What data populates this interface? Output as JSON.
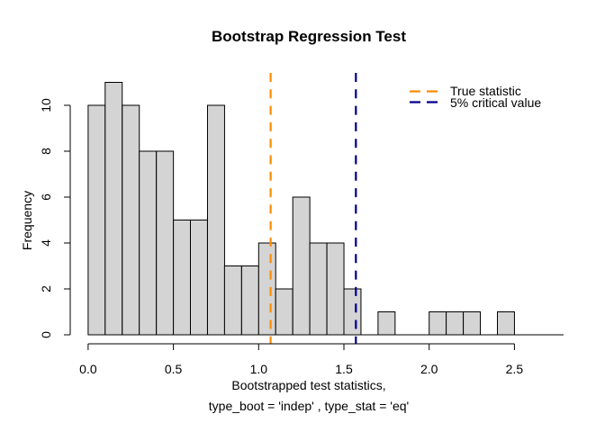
{
  "chart_data": {
    "type": "bar",
    "subtype": "histogram",
    "title": "Bootstrap Regression Test",
    "xlabel_line1": "Bootstrapped test statistics,",
    "xlabel_line2": "type_boot = 'indep' , type_stat = 'eq'",
    "ylabel": "Frequency",
    "bin_start": 0.0,
    "bin_width": 0.1,
    "counts": [
      10,
      11,
      10,
      8,
      8,
      5,
      5,
      10,
      3,
      3,
      4,
      2,
      6,
      4,
      4,
      2,
      0,
      1,
      0,
      0,
      1,
      1,
      1,
      0,
      1
    ],
    "total_count": 100,
    "x_ticks": [
      0.0,
      0.5,
      1.0,
      1.5,
      2.0,
      2.5
    ],
    "x_tick_labels": [
      "0.0",
      "0.5",
      "1.0",
      "1.5",
      "2.0",
      "2.5"
    ],
    "y_ticks": [
      0,
      2,
      4,
      6,
      8,
      10
    ],
    "y_tick_labels": [
      "0",
      "2",
      "4",
      "6",
      "8",
      "10"
    ],
    "xlim": [
      0.0,
      2.8
    ],
    "ylim": [
      0,
      11
    ],
    "grid": false,
    "bar_fill": "#d4d4d4",
    "bar_stroke": "#000000",
    "vlines": [
      {
        "x": 1.07,
        "color": "#ff8c00",
        "label": "True statistic",
        "style": "dashed"
      },
      {
        "x": 1.57,
        "color": "#00008b",
        "label": "5% critical value",
        "style": "dashed"
      }
    ],
    "legend": {
      "position": "top-right",
      "items": [
        {
          "label": "True statistic",
          "color": "#ff8c00"
        },
        {
          "label": "5% critical value",
          "color": "#00008b"
        }
      ]
    }
  }
}
